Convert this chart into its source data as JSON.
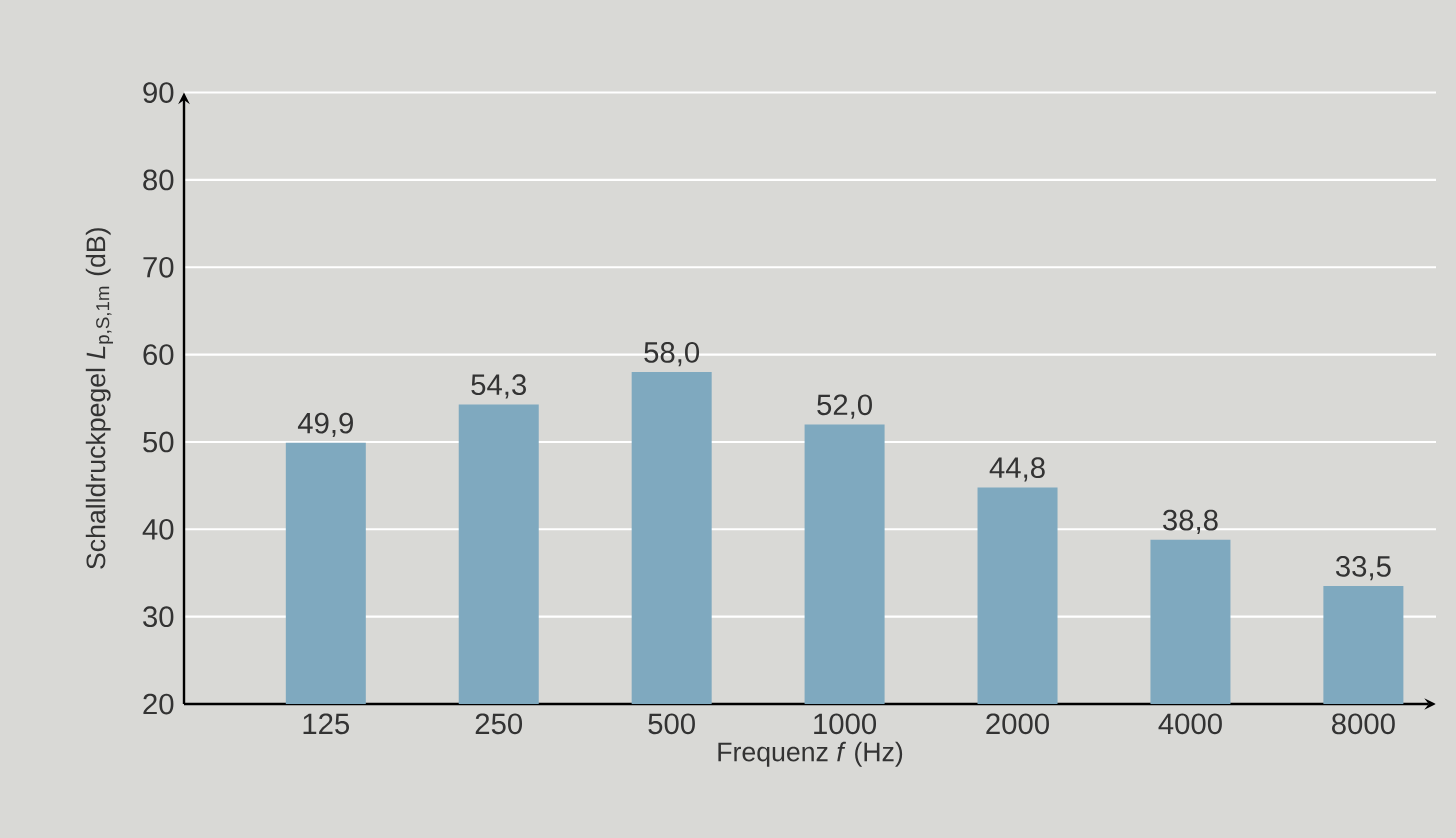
{
  "chart_data": {
    "type": "bar",
    "xlabel": "Frequenz *f* (Hz)",
    "ylabel": "Schalldruckpegel *L*$_{p,S,1m}$ (dB)",
    "categories": [
      "125",
      "250",
      "500",
      "1000",
      "2000",
      "4000",
      "8000"
    ],
    "values": [
      49.9,
      54.3,
      58.0,
      52.0,
      44.8,
      38.8,
      33.5
    ],
    "value_labels": [
      "49,9",
      "54,3",
      "58,0",
      "52,0",
      "44,8",
      "38,8",
      "33,5"
    ],
    "color": "#7fa9bf",
    "ylim": [
      20,
      90
    ],
    "yticks": [
      20,
      30,
      40,
      50,
      60,
      70,
      80,
      90
    ],
    "grid": "y"
  }
}
